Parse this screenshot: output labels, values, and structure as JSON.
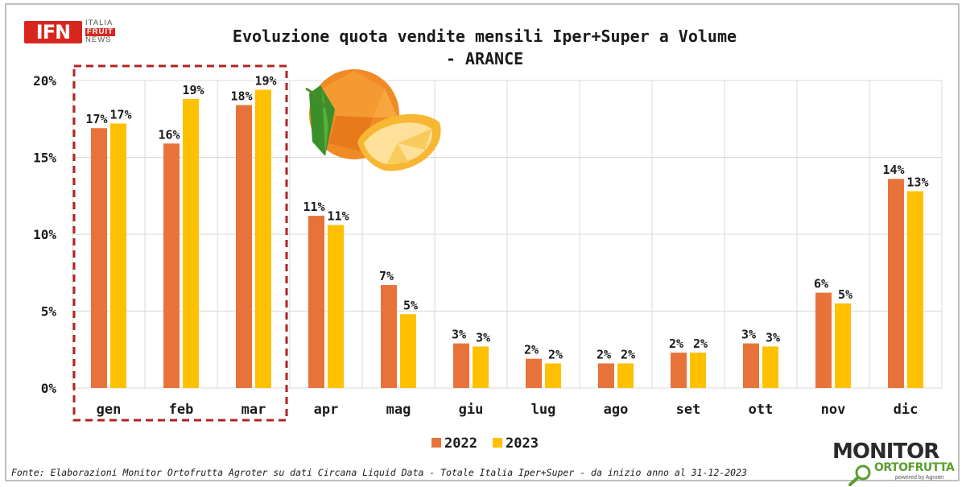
{
  "logos": {
    "ifn": {
      "mark": "IFN",
      "line1": "ITALIA",
      "line2": "FRUIT",
      "line3": "NEWS"
    },
    "monitor": {
      "top": "MONITOR",
      "bottom": "ORTOFRUTTA",
      "small": "powered by Agroter"
    }
  },
  "source_note": "Fonte: Elaborazioni Monitor Ortofrutta Agroter su dati Circana Liquid Data - Totale Italia Iper+Super -  da inizio anno al 31-12-2023",
  "colors": {
    "series_2022": "#E8733A",
    "series_2023": "#FFC000",
    "grid": "#d9d9d9",
    "highlight_box": "#b22222"
  },
  "chart_data": {
    "type": "bar",
    "title_lines": [
      "Evoluzione quota vendite mensili Iper+Super a Volume",
      "- ARANCE"
    ],
    "categories": [
      "gen",
      "feb",
      "mar",
      "apr",
      "mag",
      "giu",
      "lug",
      "ago",
      "set",
      "ott",
      "nov",
      "dic"
    ],
    "series": [
      {
        "name": "2022",
        "values": [
          16.9,
          15.9,
          18.4,
          11.2,
          6.7,
          2.9,
          1.9,
          1.6,
          2.3,
          2.9,
          6.2,
          13.6
        ],
        "labels": [
          "17%",
          "16%",
          "18%",
          "11%",
          "7%",
          "3%",
          "2%",
          "2%",
          "2%",
          "3%",
          "6%",
          "14%"
        ]
      },
      {
        "name": "2023",
        "values": [
          17.2,
          18.8,
          19.4,
          10.6,
          4.8,
          2.7,
          1.6,
          1.6,
          2.3,
          2.7,
          5.5,
          12.8
        ],
        "labels": [
          "17%",
          "19%",
          "19%",
          "11%",
          "5%",
          "3%",
          "2%",
          "2%",
          "2%",
          "3%",
          "5%",
          "13%"
        ]
      }
    ],
    "ylim": [
      0,
      20
    ],
    "yticks": [
      0,
      5,
      10,
      15,
      20
    ],
    "ytick_labels": [
      "0%",
      "5%",
      "10%",
      "15%",
      "20%"
    ],
    "legend_position": "bottom-center",
    "highlighted_categories": [
      "gen",
      "feb",
      "mar"
    ],
    "xlabel": "",
    "ylabel": ""
  }
}
